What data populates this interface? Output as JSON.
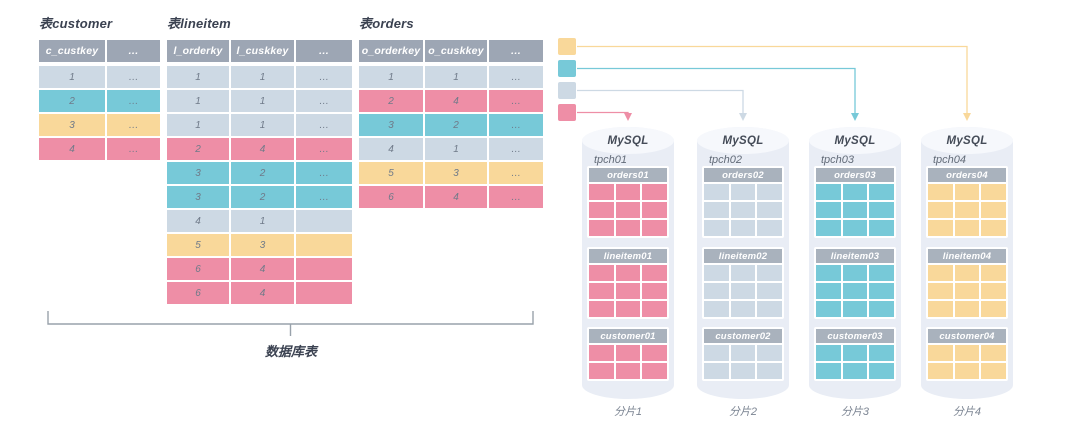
{
  "palette": {
    "header": "#9da6b4",
    "mini_header": "#a9b2bd",
    "light": "#cdd9e4",
    "cyan": "#77c9d8",
    "yellow": "#f9d89a",
    "pink": "#ee8ea6",
    "cylinder": "#e9edf5",
    "cylinder_top": "#f6f8fc",
    "bracket_line": "#99a2ab"
  },
  "tables": [
    {
      "id": "customer",
      "title": "表customer",
      "headers": [
        "c_custkey",
        "…"
      ],
      "rows": [
        {
          "cells": [
            "1",
            "…"
          ],
          "color": "light"
        },
        {
          "cells": [
            "2",
            "…"
          ],
          "color": "cyan"
        },
        {
          "cells": [
            "3",
            "…"
          ],
          "color": "yellow"
        },
        {
          "cells": [
            "4",
            "…"
          ],
          "color": "pink"
        }
      ]
    },
    {
      "id": "lineitem",
      "title": "表lineitem",
      "headers": [
        "l_orderky",
        "l_cuskkey",
        "…"
      ],
      "rows": [
        {
          "cells": [
            "1",
            "1",
            "…"
          ],
          "color": "light"
        },
        {
          "cells": [
            "1",
            "1",
            "…"
          ],
          "color": "light"
        },
        {
          "cells": [
            "1",
            "1",
            "…"
          ],
          "color": "light"
        },
        {
          "cells": [
            "2",
            "4",
            "…"
          ],
          "color": "pink"
        },
        {
          "cells": [
            "3",
            "2",
            "…"
          ],
          "color": "cyan"
        },
        {
          "cells": [
            "3",
            "2",
            "…"
          ],
          "color": "cyan"
        },
        {
          "cells": [
            "4",
            "1",
            ""
          ],
          "color": "light"
        },
        {
          "cells": [
            "5",
            "3",
            ""
          ],
          "color": "yellow"
        },
        {
          "cells": [
            "6",
            "4",
            ""
          ],
          "color": "pink"
        },
        {
          "cells": [
            "6",
            "4",
            ""
          ],
          "color": "pink"
        }
      ]
    },
    {
      "id": "orders",
      "title": "表orders",
      "headers": [
        "o_orderkey",
        "o_cuskkey",
        "…"
      ],
      "rows": [
        {
          "cells": [
            "1",
            "1",
            "…"
          ],
          "color": "light"
        },
        {
          "cells": [
            "2",
            "4",
            "…"
          ],
          "color": "pink"
        },
        {
          "cells": [
            "3",
            "2",
            "…"
          ],
          "color": "cyan"
        },
        {
          "cells": [
            "4",
            "1",
            "…"
          ],
          "color": "light"
        },
        {
          "cells": [
            "5",
            "3",
            "…"
          ],
          "color": "yellow"
        },
        {
          "cells": [
            "6",
            "4",
            "…"
          ],
          "color": "pink"
        }
      ]
    }
  ],
  "legend": {
    "items": [
      {
        "color": "yellow",
        "target": "分片4"
      },
      {
        "color": "cyan",
        "target": "分片3"
      },
      {
        "color": "light",
        "target": "分片2"
      },
      {
        "color": "pink",
        "target": "分片1"
      }
    ]
  },
  "bracket": {
    "label": "数据库表"
  },
  "shards": [
    {
      "db": "MySQL",
      "schema": "tpch01",
      "color": "pink",
      "tables": [
        {
          "name": "orders01",
          "rows": 3
        },
        {
          "name": "lineitem01",
          "rows": 3
        },
        {
          "name": "customer01",
          "rows": 2
        }
      ],
      "caption": "分片1"
    },
    {
      "db": "MySQL",
      "schema": "tpch02",
      "color": "light",
      "tables": [
        {
          "name": "orders02",
          "rows": 3
        },
        {
          "name": "lineitem02",
          "rows": 3
        },
        {
          "name": "customer02",
          "rows": 2
        }
      ],
      "caption": "分片2"
    },
    {
      "db": "MySQL",
      "schema": "tpch03",
      "color": "cyan",
      "tables": [
        {
          "name": "orders03",
          "rows": 3
        },
        {
          "name": "lineitem03",
          "rows": 3
        },
        {
          "name": "customer03",
          "rows": 2
        }
      ],
      "caption": "分片3"
    },
    {
      "db": "MySQL",
      "schema": "tpch04",
      "color": "yellow",
      "tables": [
        {
          "name": "orders04",
          "rows": 3
        },
        {
          "name": "lineitem04",
          "rows": 3
        },
        {
          "name": "customer04",
          "rows": 2
        }
      ],
      "caption": "分片4"
    }
  ]
}
